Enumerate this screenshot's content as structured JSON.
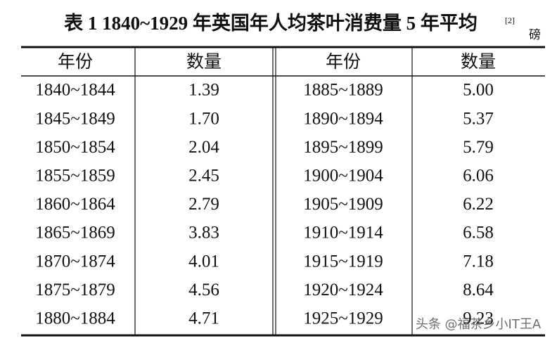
{
  "header": {
    "title": "表 1 1840~1929 年英国年人均茶叶消费量 5 年平均",
    "note": "[2]",
    "unit": "磅"
  },
  "table": {
    "columns": [
      "年份",
      "数量",
      "年份",
      "数量"
    ],
    "rows": [
      [
        "1840~1844",
        "1.39",
        "1885~1889",
        "5.00"
      ],
      [
        "1845~1849",
        "1.70",
        "1890~1894",
        "5.37"
      ],
      [
        "1850~1854",
        "2.04",
        "1895~1899",
        "5.79"
      ],
      [
        "1855~1859",
        "2.45",
        "1900~1904",
        "6.06"
      ],
      [
        "1860~1864",
        "2.79",
        "1905~1909",
        "6.22"
      ],
      [
        "1865~1869",
        "3.83",
        "1910~1914",
        "6.58"
      ],
      [
        "1870~1874",
        "4.01",
        "1915~1919",
        "7.18"
      ],
      [
        "1875~1879",
        "4.56",
        "1920~1924",
        "8.64"
      ],
      [
        "1880~1884",
        "4.71",
        "1925~1929",
        "9.23"
      ]
    ]
  },
  "watermark": "头条 @福茶乡小IT王A"
}
